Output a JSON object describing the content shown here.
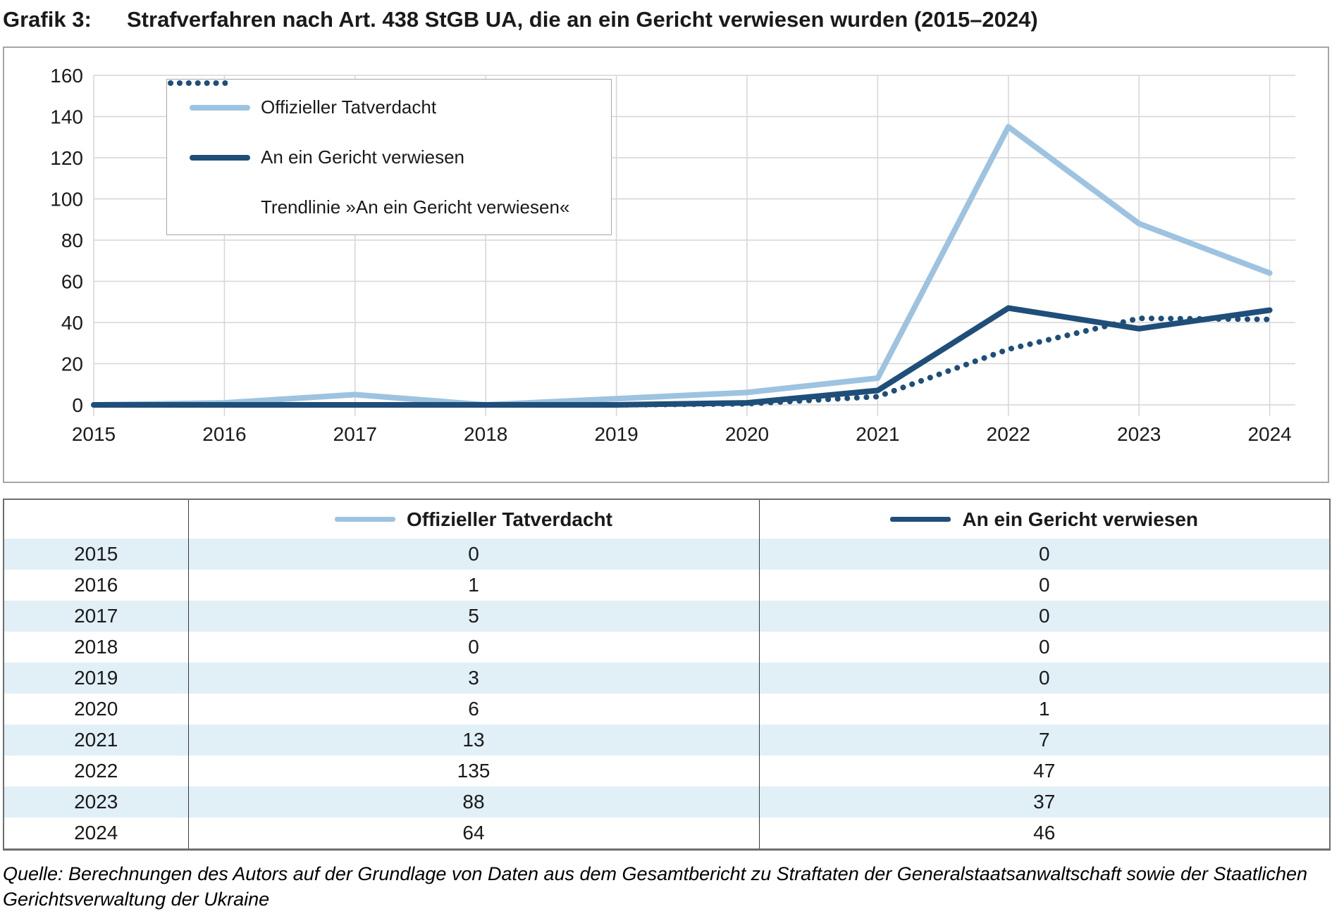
{
  "page": {
    "title_label": "Grafik 3:",
    "title": "Strafverfahren nach Art. 438 StGB UA, die an ein Gericht verwiesen wurden (2015–2024)",
    "source": "Quelle: Berechnungen des Autors auf der Grundlage von Daten aus dem Gesamtbericht zu Straftaten der Generalstaatsanwaltschaft sowie der Staatlichen Gerichtsverwaltung der Ukraine"
  },
  "chart_data": {
    "type": "line",
    "title": "",
    "x": [
      2015,
      2016,
      2017,
      2018,
      2019,
      2020,
      2021,
      2022,
      2023,
      2024
    ],
    "series": [
      {
        "name": "Offizieller Tatverdacht",
        "color": "#9dc3e0",
        "style": "solid",
        "values": [
          0,
          1,
          5,
          0,
          3,
          6,
          13,
          135,
          88,
          64
        ]
      },
      {
        "name": "An ein Gericht verwiesen",
        "color": "#1f4e79",
        "style": "solid",
        "values": [
          0,
          0,
          0,
          0,
          0,
          1,
          7,
          47,
          37,
          46
        ]
      },
      {
        "name": "Trendlinie »An ein Gericht verwiesen«",
        "color": "#1f4e79",
        "style": "dotted",
        "values": [
          null,
          0,
          0,
          0,
          0,
          0.5,
          4,
          27,
          42,
          41.5
        ]
      }
    ],
    "xlabel": "",
    "ylabel": "",
    "ylim": [
      0,
      160
    ],
    "ytick_step": 20,
    "grid": true,
    "legend_position": "top-left"
  },
  "table": {
    "columns": [
      "",
      "Offizieller Tatverdacht",
      "An ein Gericht verwiesen"
    ],
    "rows": [
      [
        "2015",
        "0",
        "0"
      ],
      [
        "2016",
        "1",
        "0"
      ],
      [
        "2017",
        "5",
        "0"
      ],
      [
        "2018",
        "0",
        "0"
      ],
      [
        "2019",
        "3",
        "0"
      ],
      [
        "2020",
        "6",
        "1"
      ],
      [
        "2021",
        "13",
        "7"
      ],
      [
        "2022",
        "135",
        "47"
      ],
      [
        "2023",
        "88",
        "37"
      ],
      [
        "2024",
        "64",
        "46"
      ]
    ]
  },
  "colors": {
    "light_blue_series": "#9dc3e0",
    "dark_blue_series": "#1f4e79",
    "row_band": "#e1eff7",
    "grid": "#d6d6d6",
    "axis_text": "#1a1a1a",
    "frame_border": "#a6a6a6",
    "table_border": "#6e6e6e"
  }
}
